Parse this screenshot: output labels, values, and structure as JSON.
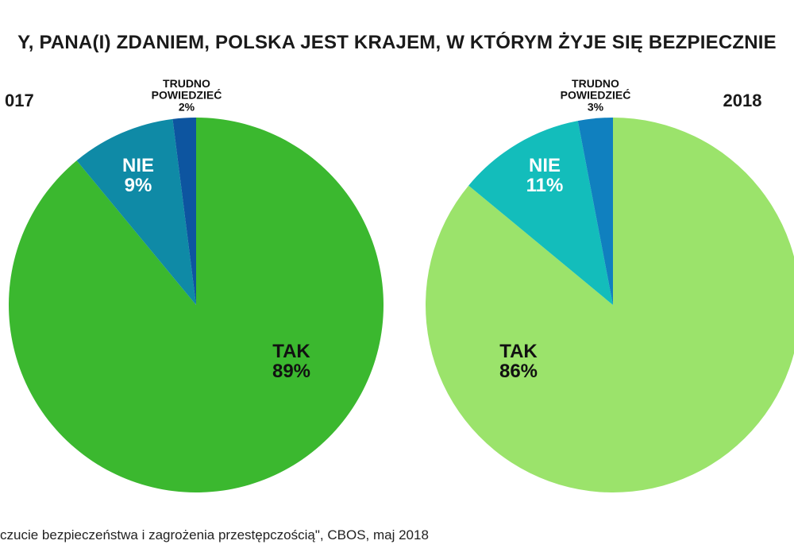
{
  "title": "Y, PANA(I) ZDANIEM, POLSKA JEST KRAJEM, W KTÓRYM ŻYJE SIĘ BEZPIECZNIE",
  "source": "czucie bezpieczeństwa i zagrożenia przestępczością\", CBOS, maj 2018",
  "chart_data": [
    {
      "type": "pie",
      "title": "017",
      "slices": [
        {
          "label": "TAK",
          "value": 89,
          "value_label": "89%",
          "color": "#3bb82f"
        },
        {
          "label": "NIE",
          "value": 9,
          "value_label": "9%",
          "color": "#0f8aa6"
        },
        {
          "label": "TRUDNO POWIEDZIEĆ",
          "value": 2,
          "value_label": "2%",
          "color": "#0d55a0"
        }
      ]
    },
    {
      "type": "pie",
      "title": "2018",
      "slices": [
        {
          "label": "TAK",
          "value": 86,
          "value_label": "86%",
          "color": "#9be36b"
        },
        {
          "label": "NIE",
          "value": 11,
          "value_label": "11%",
          "color": "#13bdbb"
        },
        {
          "label": "TRUDNO POWIEDZIEĆ",
          "value": 3,
          "value_label": "3%",
          "color": "#1080bf"
        }
      ]
    }
  ]
}
